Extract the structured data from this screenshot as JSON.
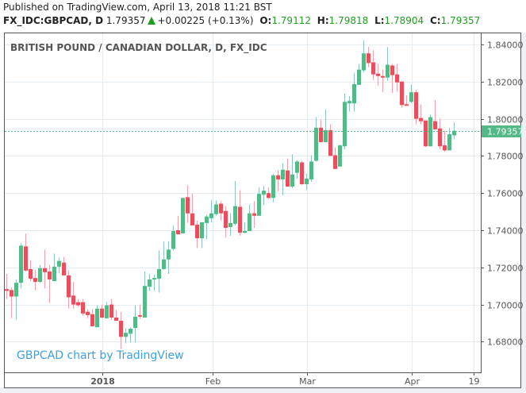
{
  "header": {
    "published": "Published on TradingView.com, April 13, 2018 11:21 BST",
    "symbol": "FX_IDC:GBPCAD, D",
    "last": "1.79357",
    "change": "+0.00225 (+0.13%)",
    "o_label": "O:",
    "o": "1.79112",
    "h_label": "H:",
    "h": "1.79818",
    "l_label": "L:",
    "l": "1.78904",
    "c_label": "C:",
    "c": "1.79357",
    "up_icon": "triangle-up-icon"
  },
  "colors": {
    "up": "#53b987",
    "down": "#eb4d5c",
    "up_wick": "#8ec5c3",
    "down_wick": "#f5a0a8",
    "grid": "#e4ecf2",
    "watermark": "#3ea0e0",
    "change": "#1e9e1e"
  },
  "chart_data": {
    "type": "candlestick",
    "title": "BRITISH POUND / CANADIAN DOLLAR, D, FX_IDC",
    "watermark": "GBPCAD chart by TradingView",
    "ylim": [
      1.6635,
      1.846
    ],
    "y_ticks": [
      "1.84000",
      "1.82000",
      "1.80000",
      "1.78000",
      "1.76000",
      "1.74000",
      "1.72000",
      "1.70000",
      "1.68000"
    ],
    "y_tick_values": [
      1.84,
      1.82,
      1.8,
      1.78,
      1.76,
      1.74,
      1.72,
      1.7,
      1.68
    ],
    "x_ticks": [
      {
        "label": "2018",
        "bar": 20.2,
        "bold": true
      },
      {
        "label": "Feb",
        "bar": 43.3,
        "bold": false
      },
      {
        "label": "Mar",
        "bar": 63.2,
        "bold": false
      },
      {
        "label": "Apr",
        "bar": 85.2,
        "bold": false
      },
      {
        "label": "19",
        "bar": 98.2,
        "bold": false
      }
    ],
    "last_price": 1.79357,
    "last_price_label": "1.79357",
    "ohlc_fields": [
      "open",
      "high",
      "low",
      "close"
    ],
    "candles": [
      [
        1.7083,
        1.7165,
        1.703,
        1.7074
      ],
      [
        1.7078,
        1.7091,
        1.6926,
        1.7043
      ],
      [
        1.7043,
        1.7135,
        1.6917,
        1.7117
      ],
      [
        1.7117,
        1.733,
        1.7087,
        1.7317
      ],
      [
        1.7313,
        1.7383,
        1.7178,
        1.7183
      ],
      [
        1.7191,
        1.7239,
        1.7126,
        1.7139
      ],
      [
        1.7143,
        1.7187,
        1.7078,
        1.7122
      ],
      [
        1.7122,
        1.7213,
        1.7117,
        1.7196
      ],
      [
        1.7196,
        1.7296,
        1.7087,
        1.7174
      ],
      [
        1.7178,
        1.7213,
        1.7009,
        1.7135
      ],
      [
        1.7126,
        1.7274,
        1.7126,
        1.7204
      ],
      [
        1.7204,
        1.7252,
        1.717,
        1.7235
      ],
      [
        1.7226,
        1.7257,
        1.7157,
        1.7157
      ],
      [
        1.7157,
        1.7183,
        1.6978,
        1.7039
      ],
      [
        1.7048,
        1.7122,
        1.6978,
        1.7
      ],
      [
        1.7013,
        1.703,
        1.6987,
        1.6996
      ],
      [
        1.7013,
        1.703,
        1.6939,
        1.6952
      ],
      [
        1.6961,
        1.6974,
        1.6926,
        1.6943
      ],
      [
        1.6948,
        1.6974,
        1.6883,
        1.6883
      ],
      [
        1.6878,
        1.6996,
        1.6878,
        1.6978
      ],
      [
        1.6978,
        1.7,
        1.6926,
        1.693
      ],
      [
        1.6926,
        1.7013,
        1.6926,
        1.6996
      ],
      [
        1.7,
        1.703,
        1.6917,
        1.693
      ],
      [
        1.693,
        1.697,
        1.6913,
        1.6913
      ],
      [
        1.6913,
        1.6961,
        1.6761,
        1.6826
      ],
      [
        1.6826,
        1.6874,
        1.6791,
        1.6848
      ],
      [
        1.6843,
        1.6878,
        1.6796,
        1.687
      ],
      [
        1.6874,
        1.6996,
        1.6796,
        1.6935
      ],
      [
        1.6943,
        1.7,
        1.6922,
        1.6935
      ],
      [
        1.693,
        1.7178,
        1.693,
        1.71
      ],
      [
        1.7096,
        1.7165,
        1.7074,
        1.7135
      ],
      [
        1.7135,
        1.7161,
        1.7074,
        1.7143
      ],
      [
        1.7139,
        1.7291,
        1.7065,
        1.7191
      ],
      [
        1.7191,
        1.7339,
        1.7187,
        1.7243
      ],
      [
        1.7243,
        1.7339,
        1.7165,
        1.7296
      ],
      [
        1.73,
        1.7426,
        1.7291,
        1.7396
      ],
      [
        1.74,
        1.7478,
        1.7378,
        1.7378
      ],
      [
        1.7383,
        1.7574,
        1.7383,
        1.7574
      ],
      [
        1.7578,
        1.7643,
        1.7439,
        1.7491
      ],
      [
        1.7491,
        1.7596,
        1.7426,
        1.7426
      ],
      [
        1.743,
        1.7452,
        1.7304,
        1.7357
      ],
      [
        1.7357,
        1.7443,
        1.7304,
        1.7443
      ],
      [
        1.7439,
        1.7483,
        1.7352,
        1.7474
      ],
      [
        1.7465,
        1.7561,
        1.7443,
        1.7491
      ],
      [
        1.7487,
        1.7561,
        1.7478,
        1.7539
      ],
      [
        1.7543,
        1.7557,
        1.7452,
        1.7491
      ],
      [
        1.7504,
        1.753,
        1.7361,
        1.7413
      ],
      [
        1.7417,
        1.7491,
        1.737,
        1.7439
      ],
      [
        1.7435,
        1.7665,
        1.7426,
        1.753
      ],
      [
        1.7526,
        1.7617,
        1.737,
        1.7387
      ],
      [
        1.7387,
        1.7443,
        1.7383,
        1.7396
      ],
      [
        1.7396,
        1.7539,
        1.7396,
        1.7491
      ],
      [
        1.7491,
        1.7557,
        1.7413,
        1.7478
      ],
      [
        1.7478,
        1.763,
        1.7478,
        1.7596
      ],
      [
        1.7591,
        1.7639,
        1.7535,
        1.7613
      ],
      [
        1.76,
        1.763,
        1.757,
        1.7574
      ],
      [
        1.7574,
        1.7704,
        1.7552,
        1.7696
      ],
      [
        1.7696,
        1.7722,
        1.7609,
        1.7674
      ],
      [
        1.7674,
        1.7761,
        1.7587,
        1.7726
      ],
      [
        1.7722,
        1.7787,
        1.7635,
        1.7635
      ],
      [
        1.7635,
        1.7809,
        1.7626,
        1.77
      ],
      [
        1.7709,
        1.7778,
        1.7678,
        1.777
      ],
      [
        1.7765,
        1.7774,
        1.7643,
        1.7648
      ],
      [
        1.7648,
        1.7704,
        1.7617,
        1.7678
      ],
      [
        1.7674,
        1.7804,
        1.7661,
        1.777
      ],
      [
        1.7774,
        1.8009,
        1.777,
        1.7952
      ],
      [
        1.7952,
        1.7996,
        1.7874,
        1.7874
      ],
      [
        1.7874,
        1.8052,
        1.7874,
        1.7939
      ],
      [
        1.7939,
        1.797,
        1.78,
        1.78
      ],
      [
        1.7804,
        1.7848,
        1.773,
        1.773
      ],
      [
        1.7743,
        1.7861,
        1.7743,
        1.7857
      ],
      [
        1.7852,
        1.8135,
        1.7835,
        1.8091
      ],
      [
        1.8083,
        1.8122,
        1.8039,
        1.8096
      ],
      [
        1.8083,
        1.8248,
        1.8039,
        1.8187
      ],
      [
        1.8183,
        1.8296,
        1.8183,
        1.8265
      ],
      [
        1.8261,
        1.8422,
        1.8252,
        1.8352
      ],
      [
        1.8352,
        1.8387,
        1.8278,
        1.83
      ],
      [
        1.8304,
        1.837,
        1.8209,
        1.8239
      ],
      [
        1.8243,
        1.8296,
        1.8178,
        1.823
      ],
      [
        1.823,
        1.8265,
        1.8143,
        1.8222
      ],
      [
        1.8222,
        1.8387,
        1.8204,
        1.8291
      ],
      [
        1.8287,
        1.8296,
        1.8139,
        1.8235
      ],
      [
        1.8239,
        1.8296,
        1.8148,
        1.8196
      ],
      [
        1.82,
        1.8204,
        1.8061,
        1.8074
      ],
      [
        1.8078,
        1.8126,
        1.807,
        1.807
      ],
      [
        1.8091,
        1.8183,
        1.8083,
        1.8143
      ],
      [
        1.8143,
        1.8157,
        1.797,
        1.8
      ],
      [
        1.8004,
        1.8078,
        1.797,
        1.7987
      ],
      [
        1.7991,
        1.7991,
        1.7848,
        1.7852
      ],
      [
        1.7852,
        1.8022,
        1.7852,
        1.8009
      ],
      [
        1.7987,
        1.81,
        1.7943,
        1.7943
      ],
      [
        1.7948,
        1.8,
        1.7835,
        1.7852
      ],
      [
        1.7857,
        1.7935,
        1.7822,
        1.783
      ],
      [
        1.783,
        1.7952,
        1.783,
        1.7917
      ],
      [
        1.7911,
        1.7982,
        1.789,
        1.79357
      ]
    ]
  }
}
